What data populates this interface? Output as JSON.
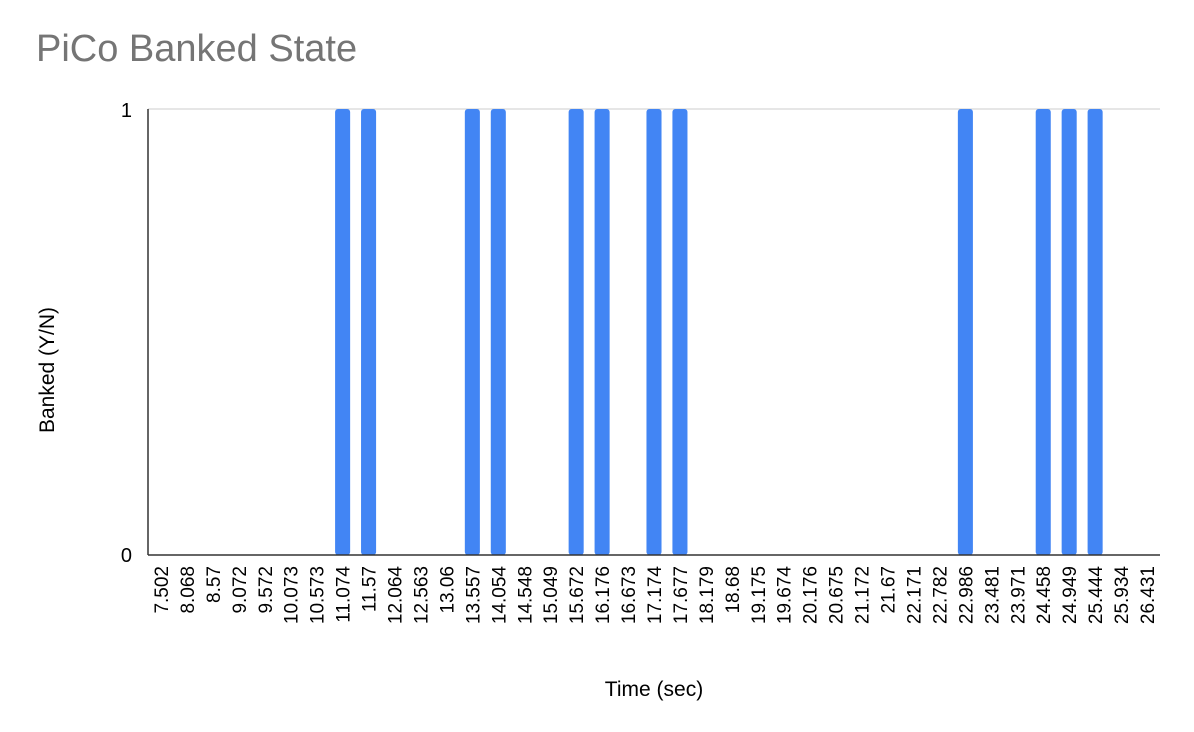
{
  "chart_data": {
    "type": "bar",
    "title": "PiCo Banked State",
    "xlabel": "Time (sec)",
    "ylabel": "Banked (Y/N)",
    "ylim": [
      0,
      1
    ],
    "y_ticks": [
      "0",
      "1"
    ],
    "grid": true,
    "bar_color": "#4285f4",
    "title_color": "#757575",
    "categories": [
      "7.502",
      "8.068",
      "8.57",
      "9.072",
      "9.572",
      "10.073",
      "10.573",
      "11.074",
      "11.57",
      "12.064",
      "12.563",
      "13.06",
      "13.557",
      "14.054",
      "14.548",
      "15.049",
      "15.672",
      "16.176",
      "16.673",
      "17.174",
      "17.677",
      "18.179",
      "18.68",
      "19.175",
      "19.674",
      "20.176",
      "20.675",
      "21.172",
      "21.67",
      "22.171",
      "22.782",
      "22.986",
      "23.481",
      "23.971",
      "24.458",
      "24.949",
      "25.444",
      "25.934",
      "26.431"
    ],
    "values": [
      0,
      0,
      0,
      0,
      0,
      0,
      0,
      1,
      1,
      0,
      0,
      0,
      1,
      1,
      0,
      0,
      1,
      1,
      0,
      1,
      1,
      0,
      0,
      0,
      0,
      0,
      0,
      0,
      0,
      0,
      0,
      1,
      0,
      0,
      1,
      1,
      1,
      0,
      0
    ]
  }
}
